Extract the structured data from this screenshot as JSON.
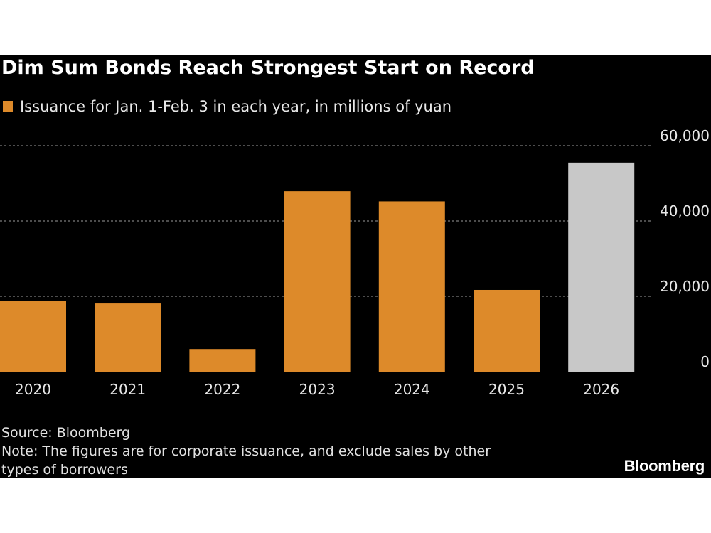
{
  "header": {
    "title": "Dim Sum Bonds Reach Strongest Start on Record",
    "legend_label": "Issuance for Jan. 1-Feb. 3 in each year, in millions of yuan"
  },
  "colors": {
    "background": "#000000",
    "bar_primary": "#dd8a2a",
    "bar_highlight": "#c8c8c8",
    "grid": "#9a9a9a",
    "text": "#e8e8e8"
  },
  "chart_data": {
    "type": "bar",
    "title": "Dim Sum Bonds Reach Strongest Start on Record",
    "xlabel": "",
    "ylabel": "Issuance for Jan. 1-Feb. 3 in each year, in millions of yuan",
    "categories": [
      "2020",
      "2021",
      "2022",
      "2023",
      "2024",
      "2025",
      "2026"
    ],
    "values": [
      18700,
      18100,
      6000,
      47900,
      45200,
      21700,
      55500
    ],
    "highlight_index": 6,
    "ylim": [
      0,
      60000
    ],
    "yticks": [
      0,
      20000,
      40000,
      60000
    ],
    "ytick_labels": [
      "0",
      "20,000",
      "40,000",
      "60,000"
    ],
    "y_axis_position": "right",
    "grid": true,
    "legend": "top-left"
  },
  "footer": {
    "source": "Source: Bloomberg",
    "note_line1": "Note: The figures are for corporate issuance, and exclude sales by other",
    "note_line2": "types of borrowers",
    "brand": "Bloomberg"
  }
}
